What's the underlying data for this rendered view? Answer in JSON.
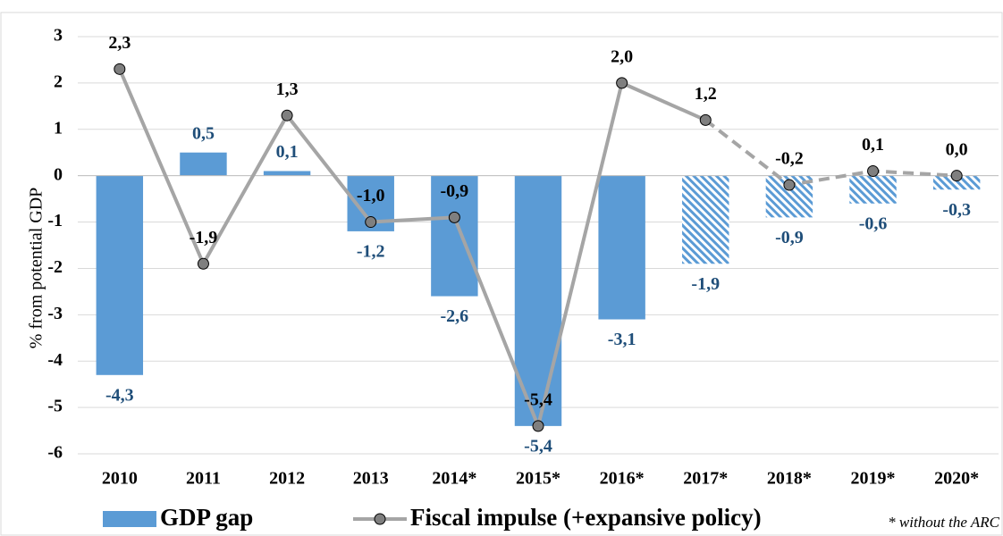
{
  "chart_data": {
    "type": "bar_line",
    "categories": [
      "2010",
      "2011",
      "2012",
      "2013",
      "2014*",
      "2015*",
      "2016*",
      "2017*",
      "2018*",
      "2019*",
      "2020*"
    ],
    "series": [
      {
        "name": "GDP gap",
        "type": "bar",
        "color": "#5b9bd5",
        "label_color": "#1f4e79",
        "hatched_from": "2017*",
        "values": [
          -4.3,
          0.5,
          0.1,
          -1.2,
          -2.6,
          -5.4,
          -3.1,
          -1.9,
          -0.9,
          -0.6,
          -0.3
        ],
        "value_labels": [
          "-4,3",
          "0,5",
          "0,1",
          "-1,2",
          "-2,6",
          "-5,4",
          "-3,1",
          "-1,9",
          "-0,9",
          "-0,6",
          "-0,3"
        ]
      },
      {
        "name": "Fiscal impulse (+expansive policy)",
        "type": "line",
        "color": "#a5a5a5",
        "marker_color": "#7f7f7f",
        "label_color": "#000000",
        "dashed_from": "2017*",
        "values": [
          2.3,
          -1.9,
          1.3,
          -1.0,
          -0.9,
          -5.4,
          2.0,
          1.2,
          -0.2,
          0.1,
          0.0
        ],
        "value_labels": [
          "2,3",
          "-1,9",
          "1,3",
          "-1,0",
          "-0,9",
          "-5,4",
          "2,0",
          "1,2",
          "-0,2",
          "0,1",
          "0,0"
        ]
      }
    ],
    "y_label": "% from potential GDP",
    "ylim": [
      -6,
      3
    ],
    "yticks": [
      -6,
      -5,
      -4,
      -3,
      -2,
      -1,
      0,
      1,
      2,
      3
    ],
    "grid": true,
    "footnote": "* without the ARC"
  }
}
